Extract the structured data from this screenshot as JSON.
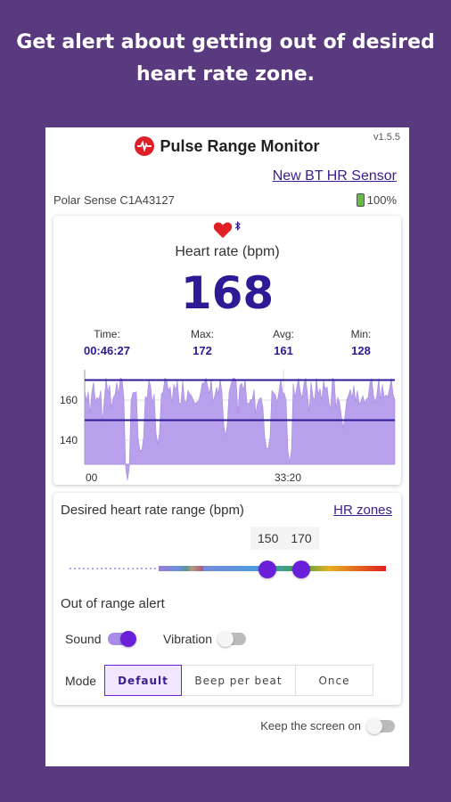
{
  "headline": {
    "line1": "Get alert about getting out of desired",
    "line2": "heart rate zone."
  },
  "app": {
    "title": "Pulse Range Monitor",
    "version": "v1.5.5",
    "logo_icon": "heartbeat-icon",
    "new_sensor_link": "New BT HR Sensor"
  },
  "sensor": {
    "name": "Polar Sense C1A43127",
    "battery": "100%"
  },
  "heart": {
    "label": "Heart rate (bpm)",
    "value": "168",
    "stats": [
      {
        "label": "Time:",
        "value": "00:46:27"
      },
      {
        "label": "Max:",
        "value": "172"
      },
      {
        "label": "Avg:",
        "value": "161"
      },
      {
        "label": "Min:",
        "value": "128"
      }
    ]
  },
  "chart_data": {
    "type": "area",
    "y_ticks": [
      "160",
      "140"
    ],
    "x_ticks": [
      "00",
      "33:20"
    ],
    "upper_limit": 170,
    "lower_limit": 150,
    "color": "#b9a0ec",
    "line_color": "#2d1a95"
  },
  "range": {
    "title": "Desired heart rate range (bpm)",
    "zones_link": "HR zones",
    "low": "150",
    "high": "170"
  },
  "alert": {
    "title": "Out of range alert",
    "sound_label": "Sound",
    "sound_on": true,
    "vibration_label": "Vibration",
    "vibration_on": false
  },
  "mode": {
    "label": "Mode",
    "options": [
      "Default",
      "Beep per beat",
      "Once"
    ],
    "selected": "Default"
  },
  "keep_screen": {
    "label": "Keep the screen on",
    "on": false
  },
  "colors": {
    "background": "#5a3a7e",
    "accent": "#6a1fd9",
    "heart": "#e01e26",
    "value": "#2d1a95"
  }
}
